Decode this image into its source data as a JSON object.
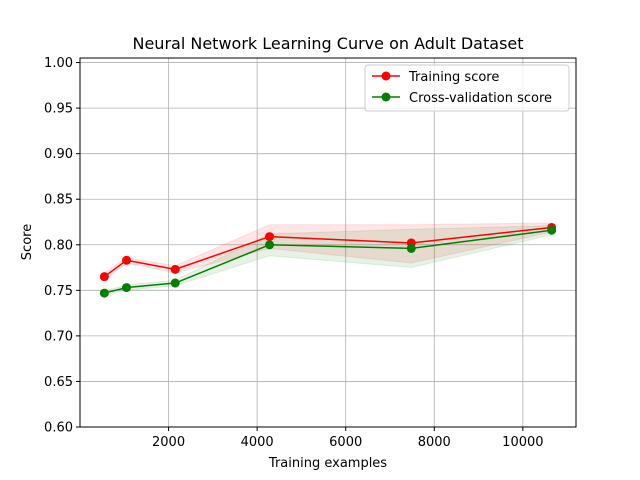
{
  "chart_data": {
    "type": "line",
    "title": "Neural Network Learning Curve on Adult Dataset",
    "xlabel": "Training examples",
    "ylabel": "Score",
    "xlim": [
      0,
      11200
    ],
    "ylim": [
      0.6,
      1.005
    ],
    "xticks": [
      2000,
      4000,
      6000,
      8000,
      10000
    ],
    "xtick_labels": [
      "2000",
      "4000",
      "6000",
      "8000",
      "10000"
    ],
    "yticks": [
      0.6,
      0.65,
      0.7,
      0.75,
      0.8,
      0.85,
      0.9,
      0.95,
      1.0
    ],
    "ytick_labels": [
      "0.60",
      "0.65",
      "0.70",
      "0.75",
      "0.80",
      "0.85",
      "0.90",
      "0.95",
      "1.00"
    ],
    "grid": true,
    "legend_position": "top-right",
    "x": [
      550,
      1050,
      2150,
      4280,
      7480,
      10650
    ],
    "series": [
      {
        "name": "Training score",
        "color": "#ff0000",
        "band_color": "#ff0000",
        "values": [
          0.765,
          0.783,
          0.773,
          0.809,
          0.802,
          0.819
        ],
        "lower": [
          0.761,
          0.78,
          0.769,
          0.796,
          0.78,
          0.814
        ],
        "upper": [
          0.769,
          0.786,
          0.777,
          0.822,
          0.822,
          0.824
        ]
      },
      {
        "name": "Cross-validation score",
        "color": "#008000",
        "band_color": "#008000",
        "values": [
          0.747,
          0.753,
          0.758,
          0.8,
          0.796,
          0.816
        ],
        "lower": [
          0.745,
          0.75,
          0.755,
          0.788,
          0.775,
          0.811
        ],
        "upper": [
          0.749,
          0.756,
          0.761,
          0.812,
          0.817,
          0.821
        ]
      }
    ]
  }
}
